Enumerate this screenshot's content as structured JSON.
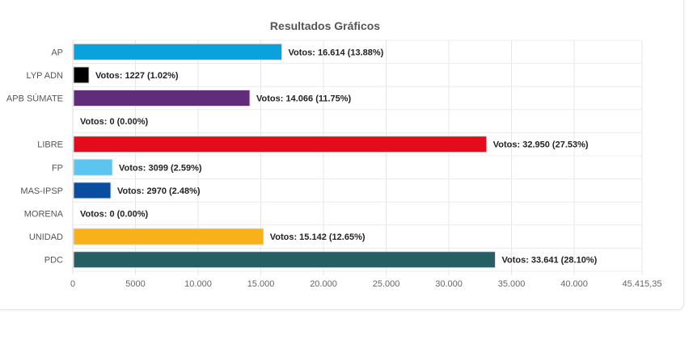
{
  "chart_data": {
    "type": "bar",
    "orientation": "horizontal",
    "title": "Resultados Gráficos",
    "xlabel": "",
    "ylabel": "",
    "xlim": [
      0,
      45415.35
    ],
    "grid": true,
    "legend": "none",
    "categories": [
      "AP",
      "LYP ADN",
      "APB SÚMATE",
      "",
      "LIBRE",
      "FP",
      "MAS-IPSP",
      "MORENA",
      "UNIDAD",
      "PDC"
    ],
    "values": [
      16614,
      1227,
      14066,
      0,
      32950,
      3099,
      2970,
      0,
      15142,
      33641
    ],
    "colors": [
      "#0aa2dc",
      "#000000",
      "#612d7b",
      "#cccccc",
      "#e30b1c",
      "#5bc5f0",
      "#0b4e9f",
      "#a01d22",
      "#f7b21b",
      "#255f63"
    ],
    "data_labels": [
      "Votos: 16.614 (13.88%)",
      "Votos: 1227 (1.02%)",
      "Votos: 14.066 (11.75%)",
      "Votos: 0 (0.00%)",
      "Votos: 32.950 (27.53%)",
      "Votos: 3099 (2.59%)",
      "Votos: 2970 (2.48%)",
      "Votos: 0 (0.00%)",
      "Votos: 15.142 (12.65%)",
      "Votos: 33.641 (28.10%)"
    ],
    "x_ticks": [
      0,
      5000,
      10000,
      15000,
      20000,
      25000,
      30000,
      35000,
      40000,
      45415.35
    ],
    "x_tick_labels": [
      "0",
      "5000",
      "10.000",
      "15.000",
      "20.000",
      "25.000",
      "30.000",
      "35.000",
      "40.000",
      "45.415,35"
    ]
  }
}
